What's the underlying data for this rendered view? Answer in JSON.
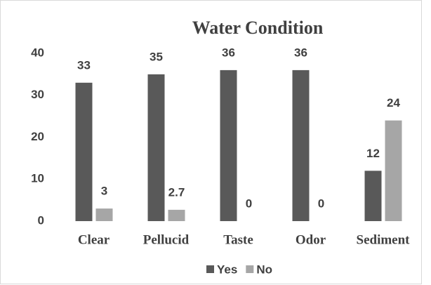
{
  "chart_data": {
    "type": "bar",
    "title": "Water Condition",
    "categories": [
      "Clear",
      "Pellucid",
      "Taste",
      "Odor",
      "Sediment"
    ],
    "series": [
      {
        "name": "Yes",
        "color": "#595959",
        "values": [
          33,
          35,
          36,
          36,
          12
        ]
      },
      {
        "name": "No",
        "color": "#a6a6a6",
        "values": [
          3,
          2.7,
          0,
          0,
          24
        ]
      }
    ],
    "ylim": [
      0,
      40
    ],
    "yticks": [
      0,
      10,
      20,
      30,
      40
    ],
    "grid": false,
    "legend": "bottom"
  }
}
